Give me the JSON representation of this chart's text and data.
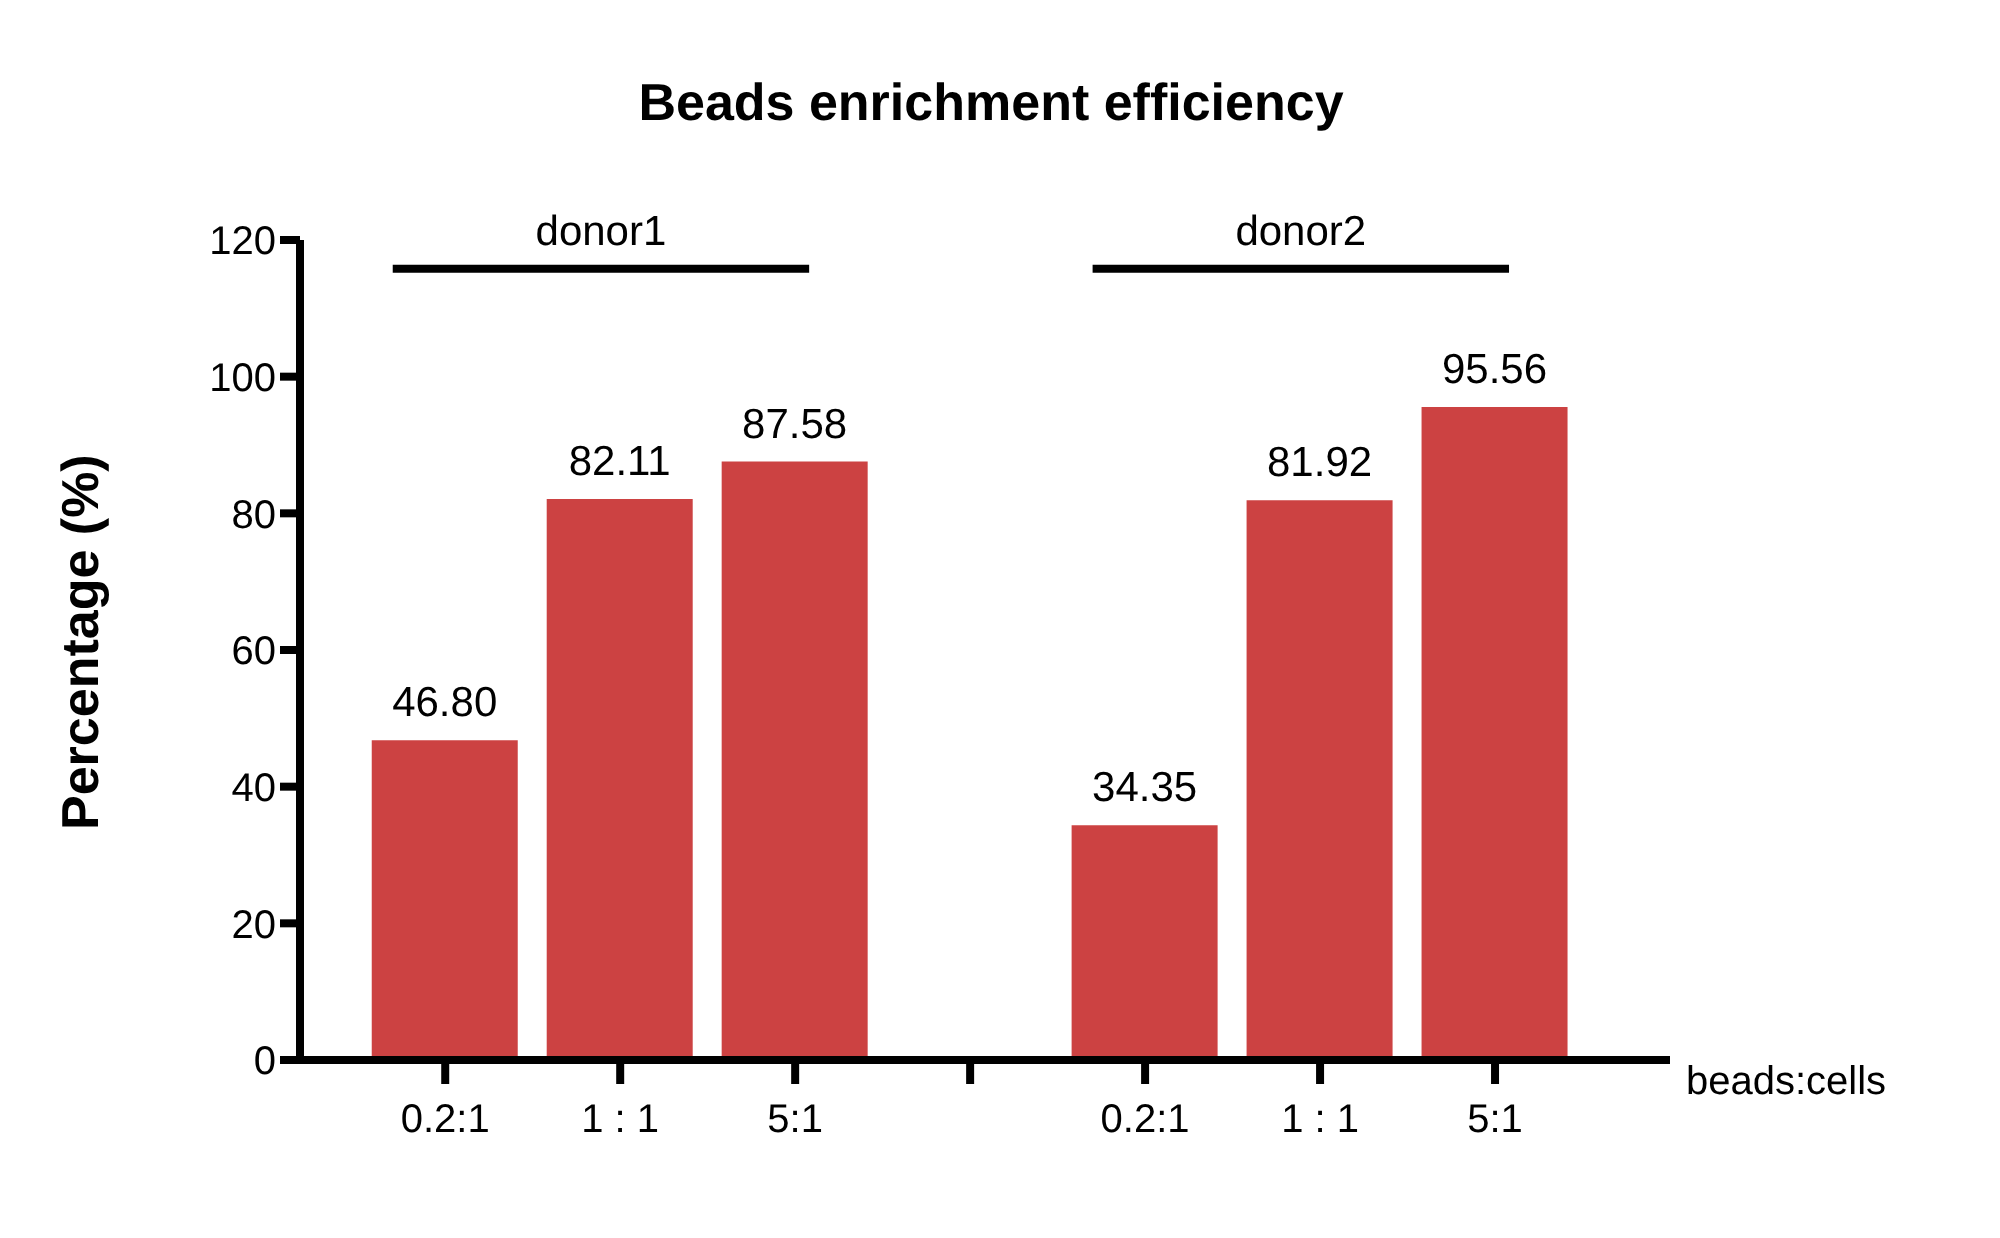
{
  "chart_data": {
    "type": "bar",
    "title": "Beads enrichment efficiency",
    "xlabel": "beads:cells",
    "ylabel": "Percentage (%)",
    "categories": [
      "0.2:1",
      "1 : 1",
      "5:1",
      null,
      "0.2:1",
      "1 : 1",
      "5:1"
    ],
    "values": [
      46.8,
      82.11,
      87.58,
      null,
      34.35,
      81.92,
      95.56
    ],
    "value_labels": [
      "46.80",
      "82.11",
      "87.58",
      null,
      "34.35",
      "81.92",
      "95.56"
    ],
    "color": "#cc4242",
    "ylim": [
      0,
      120
    ],
    "yticks": [
      0,
      20,
      40,
      60,
      80,
      100,
      120
    ],
    "annotations": [
      "donor1",
      "donor2"
    ],
    "grid": false,
    "legend": false
  }
}
